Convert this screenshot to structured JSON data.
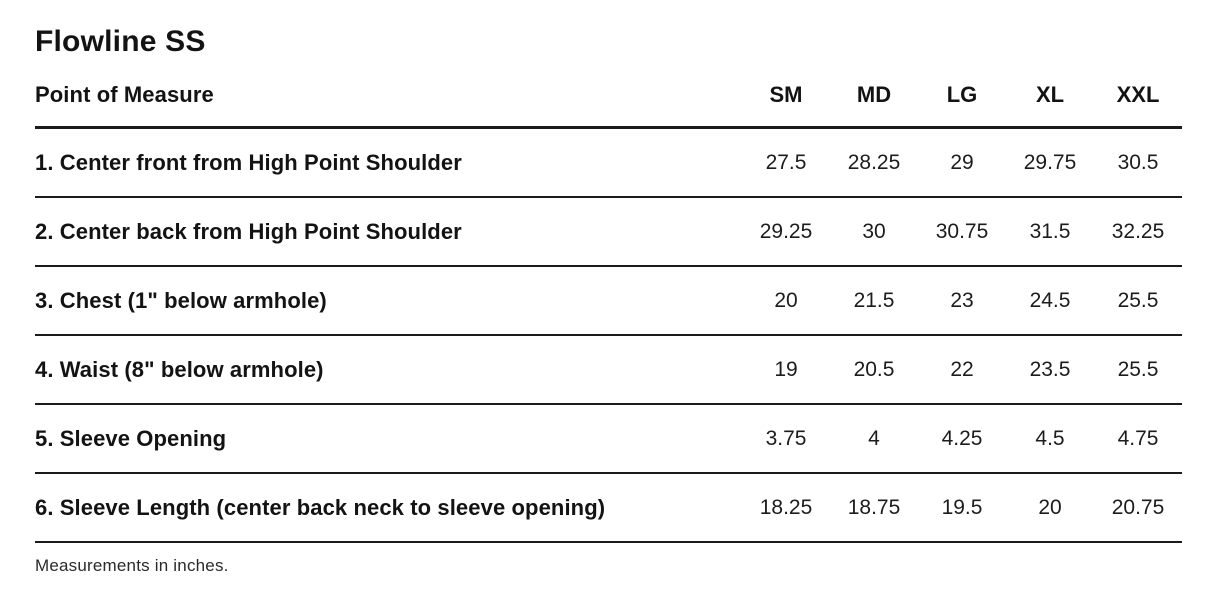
{
  "page": {
    "title": "Flowline SS",
    "footnote": "Measurements in inches."
  },
  "table": {
    "header": {
      "label": "Point of Measure",
      "sizes": [
        "SM",
        "MD",
        "LG",
        "XL",
        "XXL"
      ]
    },
    "rows": [
      {
        "label": "1. Center front from High Point Shoulder",
        "values": [
          "27.5",
          "28.25",
          "29",
          "29.75",
          "30.5"
        ]
      },
      {
        "label": "2. Center back from High Point Shoulder",
        "values": [
          "29.25",
          "30",
          "30.75",
          "31.5",
          "32.25"
        ]
      },
      {
        "label": "3. Chest (1\" below armhole)",
        "values": [
          "20",
          "21.5",
          "23",
          "24.5",
          "25.5"
        ]
      },
      {
        "label": "4. Waist (8\" below armhole)",
        "values": [
          "19",
          "20.5",
          "22",
          "23.5",
          "25.5"
        ]
      },
      {
        "label": "5. Sleeve Opening",
        "values": [
          "3.75",
          "4",
          "4.25",
          "4.5",
          "4.75"
        ]
      },
      {
        "label": "6. Sleeve Length (center back neck to sleeve opening)",
        "values": [
          "18.25",
          "18.75",
          "19.5",
          "20",
          "20.75"
        ]
      }
    ]
  },
  "colors": {
    "text": "#131313",
    "line": "#1b1b1b",
    "background": "#ffffff"
  }
}
